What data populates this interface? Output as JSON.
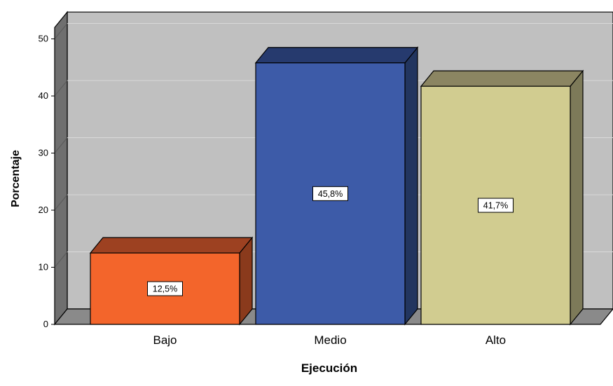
{
  "chart_data": {
    "type": "bar",
    "title": "",
    "xlabel": "Ejecución",
    "ylabel": "Porcentaje",
    "ylim": [
      0,
      52
    ],
    "yticks": [
      0,
      10,
      20,
      30,
      40,
      50
    ],
    "grid": true,
    "three_d": true,
    "categories": [
      "Bajo",
      "Medio",
      "Alto"
    ],
    "values": [
      12.5,
      45.8,
      41.7
    ],
    "data_labels": [
      "12,5%",
      "45,8%",
      "41,7%"
    ],
    "colors": [
      {
        "front": "#f3652b",
        "top": "#9d4121",
        "side": "#8a3a1c"
      },
      {
        "front": "#3d5ba8",
        "top": "#263a6e",
        "side": "#22355f"
      },
      {
        "front": "#d1cc90",
        "top": "#8b8562",
        "side": "#7d7a59"
      }
    ],
    "wall_color": "#c0c0c0",
    "floor_color": "#8a8a8a",
    "left_wall_color": "#6f6f6f"
  }
}
